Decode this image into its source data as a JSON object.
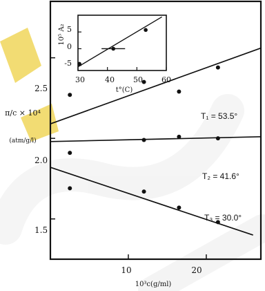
{
  "colors": {
    "ink": "#111111",
    "watermark": "#9a9a9a",
    "accent": "#e8c000"
  },
  "chart_data": [
    {
      "type": "scatter",
      "title": "",
      "xlabel": "10³c(g/ml)",
      "ylabel_main": "π/c × 10⁴",
      "ylabel_units": "(atm/g/l)",
      "xlim": [
        0,
        27
      ],
      "ylim": [
        1.25,
        2.85
      ],
      "xticks": [
        10,
        20
      ],
      "xtick_labels": [
        "10",
        "20"
      ],
      "yticks": [
        1.5,
        2.0,
        2.5
      ],
      "ytick_labels": [
        "1.5",
        "2.0",
        "2.5"
      ],
      "grid": false,
      "series": [
        {
          "name": "T₁ = 53.5°",
          "points": [
            {
              "x": 2.5,
              "y": 2.27
            },
            {
              "x": 12,
              "y": 2.35
            },
            {
              "x": 16.5,
              "y": 2.29
            },
            {
              "x": 21.5,
              "y": 2.44
            }
          ],
          "fit": [
            {
              "x": 0,
              "y": 2.09
            },
            {
              "x": 27,
              "y": 2.56
            }
          ]
        },
        {
          "name": "T₂ = 41.6°",
          "points": [
            {
              "x": 2.5,
              "y": 1.91
            },
            {
              "x": 12,
              "y": 1.99
            },
            {
              "x": 16.5,
              "y": 2.01
            },
            {
              "x": 21.5,
              "y": 2.0
            }
          ],
          "fit": [
            {
              "x": 0,
              "y": 1.98
            },
            {
              "x": 27,
              "y": 2.01
            }
          ]
        },
        {
          "name": "T₃ = 30.0°",
          "points": [
            {
              "x": 2.5,
              "y": 1.69
            },
            {
              "x": 12,
              "y": 1.67
            },
            {
              "x": 16.5,
              "y": 1.57
            },
            {
              "x": 21.5,
              "y": 1.48
            }
          ],
          "fit": [
            {
              "x": 0,
              "y": 1.82
            },
            {
              "x": 26,
              "y": 1.4
            }
          ]
        }
      ]
    },
    {
      "type": "scatter",
      "title": "",
      "xlabel": "t°(C)",
      "ylabel": "10⁵ A₂",
      "xlim": [
        30,
        60
      ],
      "ylim": [
        -6.5,
        10
      ],
      "xticks": [
        30,
        40,
        50,
        60
      ],
      "xtick_labels": [
        "30",
        "40",
        "50",
        "60"
      ],
      "yticks": [
        -5,
        0,
        5
      ],
      "ytick_labels": [
        "-5",
        "0",
        "5"
      ],
      "grid": false,
      "points": [
        {
          "x": 30.5,
          "y": -4.5
        },
        {
          "x": 42,
          "y": 0
        },
        {
          "x": 53,
          "y": 5.6
        }
      ],
      "fit": [
        {
          "x": 30,
          "y": -5.4
        },
        {
          "x": 58.5,
          "y": 9.5
        }
      ],
      "error_bars": [
        {
          "x": 42,
          "y": 0,
          "xerr": 4
        }
      ]
    }
  ]
}
